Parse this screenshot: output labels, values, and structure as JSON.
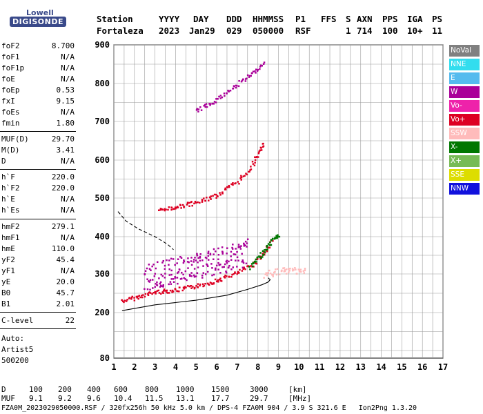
{
  "logo": {
    "top": "Lowell",
    "bottom": "DIGISONDE"
  },
  "header": {
    "labels": [
      "Station",
      "YYYY",
      "DAY",
      "DDD",
      "HHMMSS",
      "P1",
      "FFS",
      "S",
      "AXN",
      "PPS",
      "IGA",
      "PS"
    ],
    "values": [
      "Fortaleza",
      "2023",
      "Jan29",
      "029",
      "050000",
      "RSF",
      "",
      "1",
      "714",
      "100",
      "10+",
      "11"
    ]
  },
  "params": [
    {
      "name": "foF2",
      "value": "8.700"
    },
    {
      "name": "foF1",
      "value": "N/A"
    },
    {
      "name": "foF1p",
      "value": "N/A"
    },
    {
      "name": "foE",
      "value": "N/A"
    },
    {
      "name": "foEp",
      "value": "0.53"
    },
    {
      "name": "fxI",
      "value": "9.15"
    },
    {
      "name": "foEs",
      "value": "N/A"
    },
    {
      "name": "fmin",
      "value": "1.80"
    },
    {
      "name": "MUF(D)",
      "value": "29.70"
    },
    {
      "name": "M(D)",
      "value": "3.41"
    },
    {
      "name": "D",
      "value": "N/A"
    },
    {
      "name": "h`F",
      "value": "220.0"
    },
    {
      "name": "h`F2",
      "value": "220.0"
    },
    {
      "name": "h`E",
      "value": "N/A"
    },
    {
      "name": "h`Es",
      "value": "N/A"
    },
    {
      "name": "hmF2",
      "value": "279.1"
    },
    {
      "name": "hmF1",
      "value": "N/A"
    },
    {
      "name": "hmE",
      "value": "110.0"
    },
    {
      "name": "yF2",
      "value": "45.4"
    },
    {
      "name": "yF1",
      "value": "N/A"
    },
    {
      "name": "yE",
      "value": "20.0"
    },
    {
      "name": "B0",
      "value": "45.7"
    },
    {
      "name": "B1",
      "value": "2.01"
    },
    {
      "name": "C-level",
      "value": "22"
    }
  ],
  "autoscaling": {
    "line1": "Auto:",
    "line2": "Artist5",
    "line3": "500200"
  },
  "legend": [
    {
      "label": "NoVal",
      "color": "#808080"
    },
    {
      "label": "NNE",
      "color": "#33ddee"
    },
    {
      "label": "E",
      "color": "#55bbee"
    },
    {
      "label": "W",
      "color": "#aa0099"
    },
    {
      "label": "Vo-",
      "color": "#ee22aa"
    },
    {
      "label": "Vo+",
      "color": "#dd0022"
    },
    {
      "label": "SSW",
      "color": "#ffbbbb"
    },
    {
      "label": "X-",
      "color": "#007700"
    },
    {
      "label": "X+",
      "color": "#77bb55"
    },
    {
      "label": "SSE",
      "color": "#dddd00"
    },
    {
      "label": "NNW",
      "color": "#1111dd"
    }
  ],
  "mufTable": {
    "dLabel": "D",
    "dValues": [
      "100",
      "200",
      "400",
      "600",
      "800",
      "1000",
      "1500",
      "3000",
      "[km]"
    ],
    "mufLabel": "MUF",
    "mufValues": [
      "9.1",
      "9.2",
      "9.6",
      "10.4",
      "11.5",
      "13.1",
      "17.7",
      "29.7",
      "[MHz]"
    ]
  },
  "footer": "FZA0M_2023029050000.RSF / 320fx256h 50 kHz 5.0 km / DPS-4 FZA0M 904 / 3.9 S 321.6 E   Ion2Png 1.3.20",
  "chart_data": {
    "type": "scatter",
    "x_ticks": [
      "1",
      "2",
      "3",
      "4",
      "5",
      "6",
      "7",
      "8",
      "9",
      "10",
      "11",
      "12",
      "13",
      "14",
      "15",
      "16",
      "17"
    ],
    "y_ticks": [
      "80",
      "200",
      "300",
      "400",
      "500",
      "600",
      "700",
      "800",
      "900"
    ],
    "xlim": [
      1,
      17
    ],
    "ylim": [
      80,
      900
    ],
    "grid": true,
    "traces": [
      {
        "name": "O-trace",
        "color": "#dd0022",
        "points": [
          [
            1.4,
            232
          ],
          [
            2.0,
            240
          ],
          [
            3.0,
            255
          ],
          [
            4.0,
            260
          ],
          [
            5.0,
            270
          ],
          [
            6.0,
            285
          ],
          [
            7.0,
            305
          ],
          [
            7.8,
            330
          ],
          [
            8.3,
            360
          ],
          [
            8.7,
            395
          ]
        ]
      },
      {
        "name": "X-trace",
        "color": "#007700",
        "points": [
          [
            7.6,
            320
          ],
          [
            8.0,
            345
          ],
          [
            8.4,
            370
          ],
          [
            8.8,
            400
          ],
          [
            9.0,
            405
          ]
        ]
      },
      {
        "name": "2nd-hop",
        "color": "#dd0022",
        "points": [
          [
            3.2,
            470
          ],
          [
            4.0,
            478
          ],
          [
            5.0,
            490
          ],
          [
            6.0,
            510
          ],
          [
            7.0,
            545
          ],
          [
            7.6,
            580
          ],
          [
            8.0,
            620
          ],
          [
            8.3,
            645
          ]
        ]
      },
      {
        "name": "3rd-hop",
        "color": "#aa0099",
        "points": [
          [
            5.0,
            730
          ],
          [
            6.0,
            760
          ],
          [
            7.0,
            800
          ],
          [
            7.8,
            830
          ],
          [
            8.3,
            860
          ]
        ]
      },
      {
        "name": "spread-cloud",
        "color": "#aa0099",
        "points": [
          [
            2.5,
            290
          ],
          [
            3.2,
            300
          ],
          [
            4.0,
            310
          ],
          [
            5.0,
            320
          ],
          [
            6.0,
            335
          ],
          [
            7.0,
            350
          ],
          [
            7.5,
            360
          ]
        ]
      },
      {
        "name": "spread-F-ssw",
        "color": "#ffbbbb",
        "points": [
          [
            8.3,
            300
          ],
          [
            8.8,
            305
          ],
          [
            9.3,
            310
          ],
          [
            9.8,
            312
          ],
          [
            10.4,
            310
          ]
        ]
      }
    ],
    "profile_solid": [
      [
        1.4,
        205
      ],
      [
        3.0,
        220
      ],
      [
        5.0,
        232
      ],
      [
        6.5,
        245
      ],
      [
        7.5,
        260
      ],
      [
        8.2,
        272
      ],
      [
        8.5,
        279
      ],
      [
        8.6,
        285
      ],
      [
        8.5,
        290
      ]
    ],
    "profile_dashed": [
      [
        1.2,
        465
      ],
      [
        1.6,
        440
      ],
      [
        2.2,
        420
      ],
      [
        3.0,
        400
      ],
      [
        3.6,
        380
      ],
      [
        3.9,
        365
      ]
    ]
  }
}
